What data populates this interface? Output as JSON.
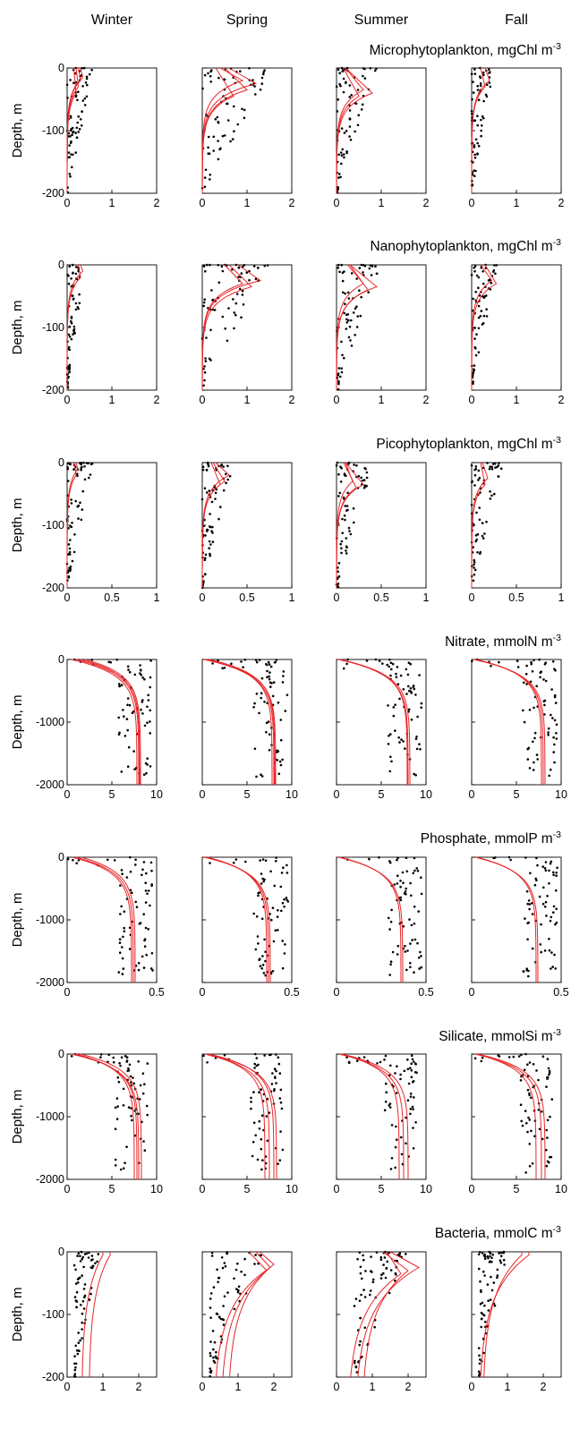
{
  "seasons": [
    "Winter",
    "Spring",
    "Summer",
    "Fall"
  ],
  "y_axis_label": "Depth, m",
  "chart_data": [
    {
      "type": "scatter",
      "title": "Microphytoplankton, mgChl m",
      "title_sup": "-3",
      "ylabel": "Depth, m",
      "xlim": [
        0,
        2
      ],
      "ylim": [
        -200,
        0
      ],
      "xticks": [
        "0",
        "1",
        "2"
      ],
      "yticks": [
        "0",
        "-100",
        "-200"
      ],
      "panels": [
        {
          "season": "Winter",
          "model_profiles": [
            {
              "surface": 0.25,
              "peak": 0.3,
              "peak_depth": -20
            },
            {
              "surface": 0.2,
              "peak": 0.25,
              "peak_depth": -30
            },
            {
              "surface": 0.3,
              "peak": 0.35,
              "peak_depth": -15
            },
            {
              "surface": 0.15,
              "peak": 0.2,
              "peak_depth": -40
            }
          ],
          "obs_range": [
            0,
            0.6
          ]
        },
        {
          "season": "Spring",
          "model_profiles": [
            {
              "surface": 0.6,
              "peak": 1.2,
              "peak_depth": -25
            },
            {
              "surface": 0.5,
              "peak": 1.0,
              "peak_depth": -35
            },
            {
              "surface": 0.4,
              "peak": 0.9,
              "peak_depth": -20
            },
            {
              "surface": 0.3,
              "peak": 0.7,
              "peak_depth": -45
            }
          ],
          "obs_range": [
            0,
            1.6
          ]
        },
        {
          "season": "Summer",
          "model_profiles": [
            {
              "surface": 0.2,
              "peak": 0.8,
              "peak_depth": -40
            },
            {
              "surface": 0.2,
              "peak": 0.6,
              "peak_depth": -35
            },
            {
              "surface": 0.15,
              "peak": 0.5,
              "peak_depth": -45
            }
          ],
          "obs_range": [
            0,
            0.9
          ]
        },
        {
          "season": "Fall",
          "model_profiles": [
            {
              "surface": 0.3,
              "peak": 0.4,
              "peak_depth": -20
            },
            {
              "surface": 0.2,
              "peak": 0.3,
              "peak_depth": -30
            }
          ],
          "obs_range": [
            0,
            0.5
          ]
        }
      ]
    },
    {
      "type": "scatter",
      "title": "Nanophytoplankton, mgChl m",
      "title_sup": "-3",
      "ylabel": "Depth, m",
      "xlim": [
        0,
        2
      ],
      "ylim": [
        -200,
        0
      ],
      "xticks": [
        "0",
        "1",
        "2"
      ],
      "yticks": [
        "0",
        "-100",
        "-200"
      ],
      "panels": [
        {
          "season": "Winter",
          "model_profiles": [
            {
              "surface": 0.3,
              "peak": 0.35,
              "peak_depth": -10
            },
            {
              "surface": 0.25,
              "peak": 0.3,
              "peak_depth": -20
            }
          ],
          "obs_range": [
            0,
            0.4
          ]
        },
        {
          "season": "Spring",
          "model_profiles": [
            {
              "surface": 0.8,
              "peak": 1.3,
              "peak_depth": -25
            },
            {
              "surface": 0.6,
              "peak": 1.1,
              "peak_depth": -35
            },
            {
              "surface": 0.5,
              "peak": 0.9,
              "peak_depth": -30
            }
          ],
          "obs_range": [
            0,
            1.6
          ]
        },
        {
          "season": "Summer",
          "model_profiles": [
            {
              "surface": 0.3,
              "peak": 0.9,
              "peak_depth": -35
            },
            {
              "surface": 0.3,
              "peak": 0.7,
              "peak_depth": -40
            },
            {
              "surface": 0.25,
              "peak": 0.6,
              "peak_depth": -30
            }
          ],
          "obs_range": [
            0,
            1.0
          ]
        },
        {
          "season": "Fall",
          "model_profiles": [
            {
              "surface": 0.3,
              "peak": 0.55,
              "peak_depth": -30
            },
            {
              "surface": 0.2,
              "peak": 0.45,
              "peak_depth": -25
            }
          ],
          "obs_range": [
            0,
            0.6
          ]
        }
      ]
    },
    {
      "type": "scatter",
      "title": "Picophytoplankton, mgChl m",
      "title_sup": "-3",
      "ylabel": "Depth, m",
      "xlim": [
        0,
        1
      ],
      "ylim": [
        -200,
        0
      ],
      "xticks": [
        "0",
        "0.5",
        "1"
      ],
      "yticks": [
        "0",
        "-100",
        "-200"
      ],
      "panels": [
        {
          "season": "Winter",
          "model_profiles": [
            {
              "surface": 0.1,
              "peak": 0.12,
              "peak_depth": -10
            },
            {
              "surface": 0.08,
              "peak": 0.1,
              "peak_depth": -20
            }
          ],
          "obs_range": [
            0,
            0.3
          ]
        },
        {
          "season": "Spring",
          "model_profiles": [
            {
              "surface": 0.15,
              "peak": 0.3,
              "peak_depth": -20
            },
            {
              "surface": 0.12,
              "peak": 0.25,
              "peak_depth": -30
            },
            {
              "surface": 0.1,
              "peak": 0.2,
              "peak_depth": -35
            }
          ],
          "obs_range": [
            0,
            0.35
          ]
        },
        {
          "season": "Summer",
          "model_profiles": [
            {
              "surface": 0.1,
              "peak": 0.3,
              "peak_depth": -35
            },
            {
              "surface": 0.08,
              "peak": 0.22,
              "peak_depth": -40
            },
            {
              "surface": 0.1,
              "peak": 0.18,
              "peak_depth": -30
            }
          ],
          "obs_range": [
            0,
            0.45
          ]
        },
        {
          "season": "Fall",
          "model_profiles": [
            {
              "surface": 0.12,
              "peak": 0.18,
              "peak_depth": -25
            },
            {
              "surface": 0.1,
              "peak": 0.15,
              "peak_depth": -35
            }
          ],
          "obs_range": [
            0,
            0.35
          ]
        }
      ]
    },
    {
      "type": "scatter",
      "title": "Nitrate, mmolN m",
      "title_sup": "-3",
      "ylabel": "Depth, m",
      "xlim": [
        0,
        10
      ],
      "ylim": [
        -2000,
        0
      ],
      "xticks": [
        "0",
        "5",
        "10"
      ],
      "yticks": [
        "0",
        "-1000",
        "-2000"
      ],
      "panels": [
        {
          "season": "Winter",
          "model_profiles": [
            {
              "surface": 1.0,
              "deep": 8.0
            },
            {
              "surface": 0.5,
              "deep": 7.8
            },
            {
              "surface": 2.0,
              "deep": 8.2
            },
            {
              "surface": 1.5,
              "deep": 8.1
            }
          ],
          "obs_range": [
            0,
            9.5
          ]
        },
        {
          "season": "Spring",
          "model_profiles": [
            {
              "surface": 0.2,
              "deep": 8.0
            },
            {
              "surface": 0.5,
              "deep": 7.8
            },
            {
              "surface": 0.3,
              "deep": 8.2
            },
            {
              "surface": 0.8,
              "deep": 8.1
            }
          ],
          "obs_range": [
            0,
            9.5
          ]
        },
        {
          "season": "Summer",
          "model_profiles": [
            {
              "surface": 0.2,
              "deep": 8.0
            },
            {
              "surface": 0.4,
              "deep": 7.9
            },
            {
              "surface": 0.3,
              "deep": 8.2
            }
          ],
          "obs_range": [
            0,
            9.5
          ]
        },
        {
          "season": "Fall",
          "model_profiles": [
            {
              "surface": 0.3,
              "deep": 8.0
            },
            {
              "surface": 0.5,
              "deep": 7.8
            },
            {
              "surface": 0.2,
              "deep": 8.2
            }
          ],
          "obs_range": [
            0,
            9.5
          ]
        }
      ]
    },
    {
      "type": "scatter",
      "title": "Phosphate, mmolP m",
      "title_sup": "-3",
      "ylabel": "Depth, m",
      "xlim": [
        0,
        0.5
      ],
      "ylim": [
        -2000,
        0
      ],
      "xticks": [
        "0",
        "0.5"
      ],
      "yticks": [
        "0",
        "-1000",
        "-2000"
      ],
      "panels": [
        {
          "season": "Winter",
          "model_profiles": [
            {
              "surface": 0.05,
              "deep": 0.37
            },
            {
              "surface": 0.03,
              "deep": 0.36
            },
            {
              "surface": 0.08,
              "deep": 0.38
            }
          ],
          "obs_range": [
            0,
            0.48
          ]
        },
        {
          "season": "Spring",
          "model_profiles": [
            {
              "surface": 0.02,
              "deep": 0.37
            },
            {
              "surface": 0.03,
              "deep": 0.36
            },
            {
              "surface": 0.01,
              "deep": 0.38
            }
          ],
          "obs_range": [
            0,
            0.48
          ]
        },
        {
          "season": "Summer",
          "model_profiles": [
            {
              "surface": 0.01,
              "deep": 0.37
            },
            {
              "surface": 0.02,
              "deep": 0.36
            }
          ],
          "obs_range": [
            0,
            0.48
          ]
        },
        {
          "season": "Fall",
          "model_profiles": [
            {
              "surface": 0.02,
              "deep": 0.37
            },
            {
              "surface": 0.03,
              "deep": 0.36
            }
          ],
          "obs_range": [
            0,
            0.48
          ]
        }
      ]
    },
    {
      "type": "scatter",
      "title": "Silicate, mmolSi m",
      "title_sup": "-3",
      "ylabel": "Depth, m",
      "xlim": [
        0,
        10
      ],
      "ylim": [
        -2000,
        0
      ],
      "xticks": [
        "0",
        "5",
        "10"
      ],
      "yticks": [
        "0",
        "-1000",
        "-2000"
      ],
      "panels": [
        {
          "season": "Winter",
          "model_profiles": [
            {
              "surface": 1.0,
              "deep": 7.5
            },
            {
              "surface": 0.5,
              "deep": 8.0
            },
            {
              "surface": 1.5,
              "deep": 8.3
            },
            {
              "surface": 0.8,
              "deep": 7.8
            }
          ],
          "obs_range": [
            0,
            9.0
          ]
        },
        {
          "season": "Spring",
          "model_profiles": [
            {
              "surface": 0.5,
              "deep": 7.0
            },
            {
              "surface": 0.3,
              "deep": 7.5
            },
            {
              "surface": 0.8,
              "deep": 8.0
            },
            {
              "surface": 0.4,
              "deep": 8.3
            }
          ],
          "obs_range": [
            0,
            9.0
          ]
        },
        {
          "season": "Summer",
          "model_profiles": [
            {
              "surface": 0.5,
              "deep": 7.0
            },
            {
              "surface": 0.3,
              "deep": 7.5
            },
            {
              "surface": 0.6,
              "deep": 8.0
            }
          ],
          "obs_range": [
            0,
            9.0
          ]
        },
        {
          "season": "Fall",
          "model_profiles": [
            {
              "surface": 0.5,
              "deep": 7.2
            },
            {
              "surface": 0.4,
              "deep": 7.8
            },
            {
              "surface": 0.7,
              "deep": 8.2
            }
          ],
          "obs_range": [
            0,
            9.0
          ]
        }
      ]
    },
    {
      "type": "scatter",
      "title": "Bacteria, mmolC m",
      "title_sup": "-3",
      "ylabel": "Depth, m",
      "xlim": [
        0,
        2.5
      ],
      "ylim": [
        -200,
        0
      ],
      "xticks": [
        "0",
        "1",
        "2"
      ],
      "yticks": [
        "0",
        "-100",
        "-200"
      ],
      "panels": [
        {
          "season": "Winter",
          "model_profiles": [
            {
              "surface": 1.2,
              "peak": 1.2,
              "peak_depth": -5,
              "bottom": 0.6
            },
            {
              "surface": 1.0,
              "peak": 1.0,
              "peak_depth": -5,
              "bottom": 0.4
            }
          ],
          "obs_range": [
            0.2,
            0.9
          ]
        },
        {
          "season": "Spring",
          "model_profiles": [
            {
              "surface": 1.5,
              "peak": 1.9,
              "peak_depth": -25,
              "bottom": 0.3
            },
            {
              "surface": 1.3,
              "peak": 1.8,
              "peak_depth": -30,
              "bottom": 0.5
            },
            {
              "surface": 1.6,
              "peak": 2.0,
              "peak_depth": -20,
              "bottom": 0.7
            }
          ],
          "obs_range": [
            0.2,
            1.8
          ]
        },
        {
          "season": "Summer",
          "model_profiles": [
            {
              "surface": 1.5,
              "peak": 2.3,
              "peak_depth": -25,
              "bottom": 0.5
            },
            {
              "surface": 1.3,
              "peak": 2.0,
              "peak_depth": -30,
              "bottom": 0.7
            },
            {
              "surface": 1.4,
              "peak": 1.8,
              "peak_depth": -35,
              "bottom": 0.3
            }
          ],
          "obs_range": [
            0.5,
            2.0
          ]
        },
        {
          "season": "Fall",
          "model_profiles": [
            {
              "surface": 1.6,
              "peak": 1.6,
              "peak_depth": -5,
              "bottom": 0.2
            },
            {
              "surface": 1.4,
              "peak": 1.4,
              "peak_depth": -5,
              "bottom": 0.3
            }
          ],
          "obs_range": [
            0.2,
            1.0
          ]
        }
      ]
    }
  ]
}
